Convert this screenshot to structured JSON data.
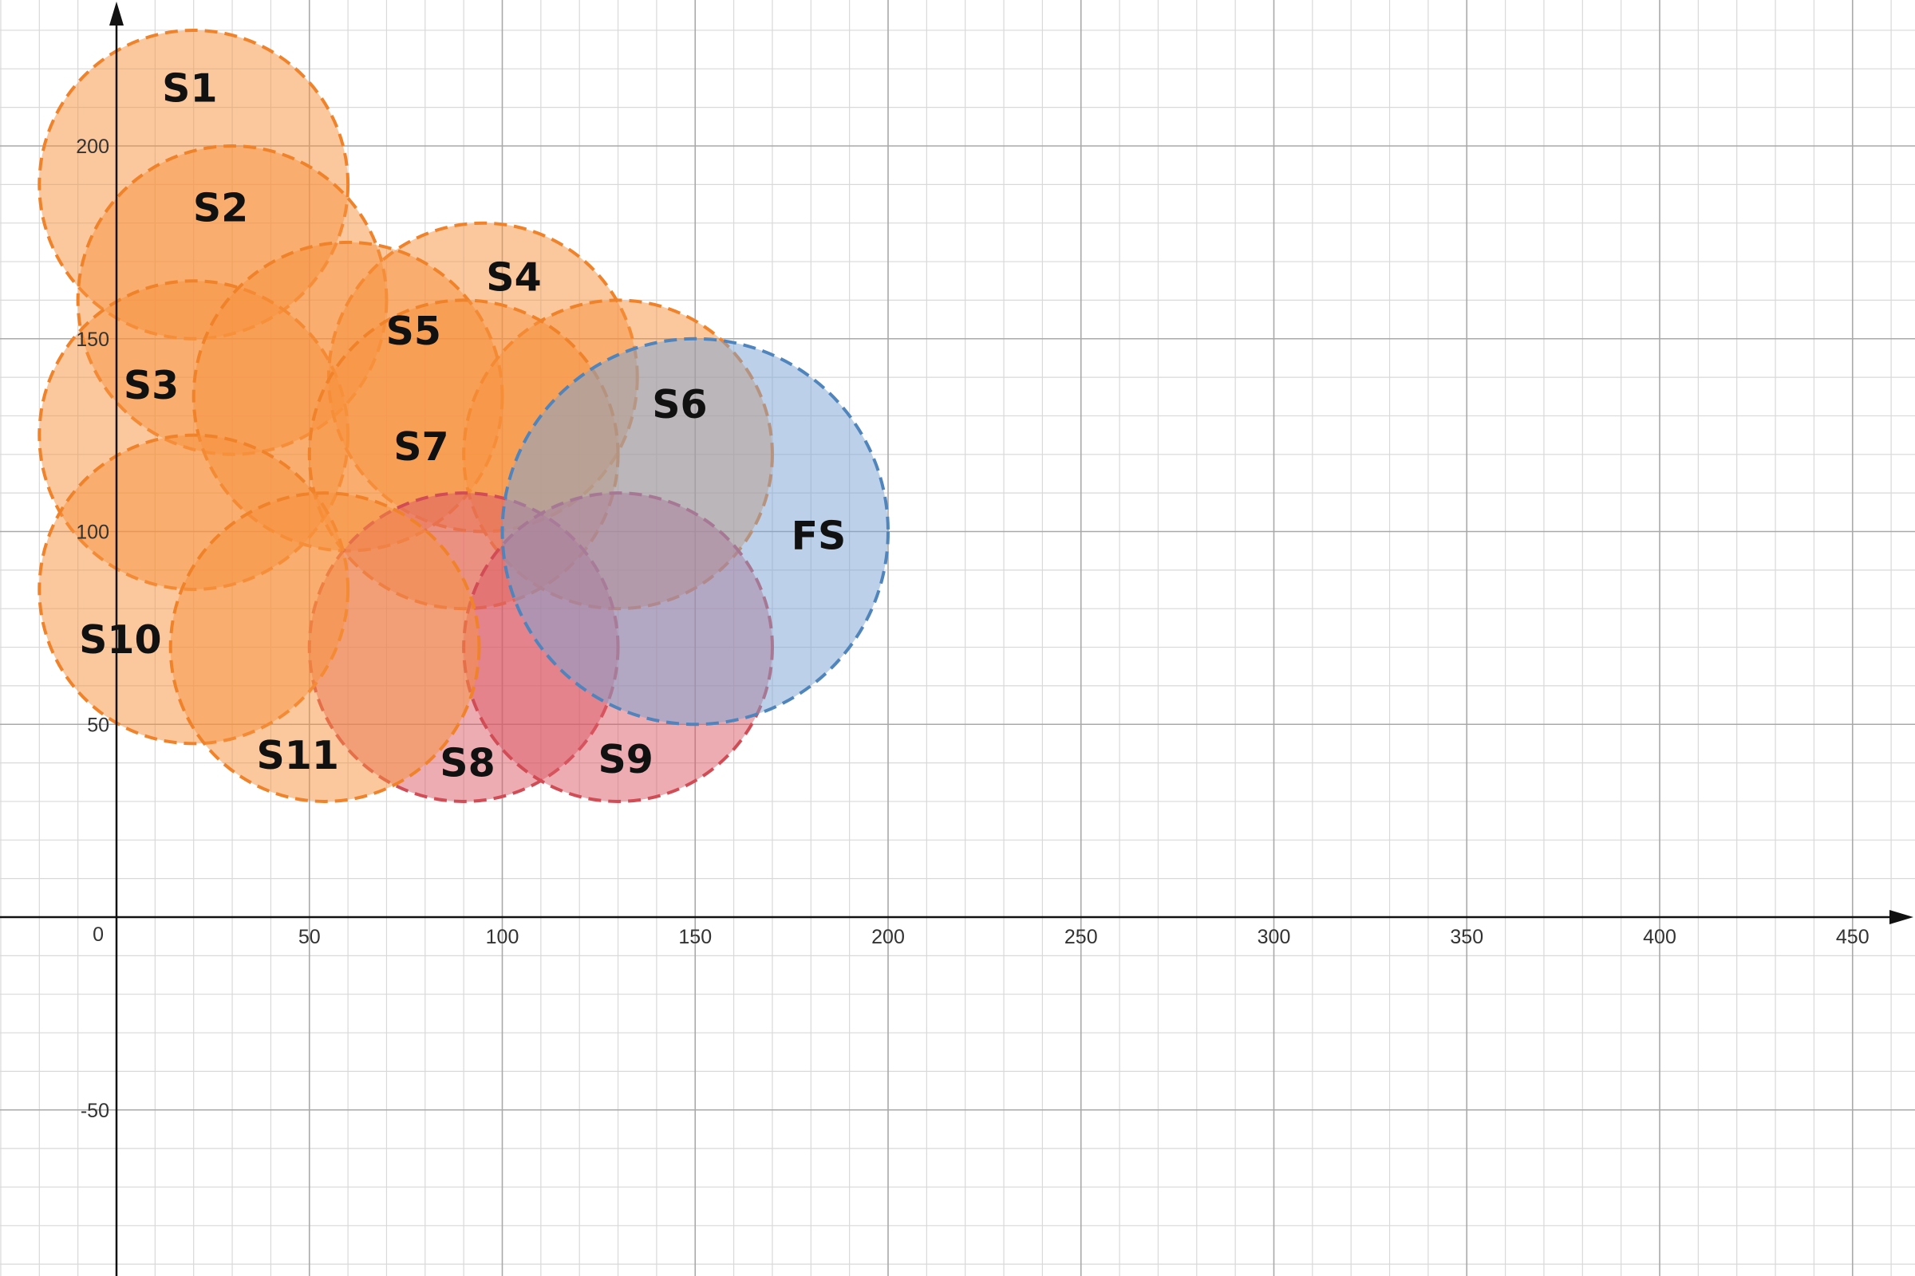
{
  "chart_data": {
    "type": "scatter",
    "title": "",
    "xlabel": "",
    "ylabel": "",
    "xlim": [
      -30,
      465
    ],
    "ylim": [
      -93,
      237
    ],
    "x_ticks": [
      50,
      100,
      150,
      200,
      250,
      300,
      350,
      400,
      450
    ],
    "y_ticks": [
      200,
      150,
      100,
      50,
      -50
    ],
    "origin_label": "0",
    "grid": true,
    "minor_grid_step": 10,
    "colors": {
      "orange_fill": "#f7913d",
      "orange_stroke": "#f0822a",
      "red_fill": "#dc5a66",
      "red_stroke": "#d24c55",
      "blue_fill": "#7aa3d3",
      "blue_stroke": "#4f84bd",
      "major_grid": "#a9a9a9",
      "minor_grid": "#d9d9d9",
      "axis": "#111111"
    },
    "series": [
      {
        "name": "S1",
        "cx": 20,
        "cy": 190,
        "r": 40,
        "color": "orange",
        "label_x": 19,
        "label_y": 215
      },
      {
        "name": "S2",
        "cx": 30,
        "cy": 160,
        "r": 40,
        "color": "orange",
        "label_x": 27,
        "label_y": 184
      },
      {
        "name": "S3",
        "cx": 20,
        "cy": 125,
        "r": 40,
        "color": "orange",
        "label_x": 9,
        "label_y": 138
      },
      {
        "name": "S4",
        "cx": 95,
        "cy": 140,
        "r": 40,
        "color": "orange",
        "label_x": 103,
        "label_y": 166
      },
      {
        "name": "S5",
        "cx": 60,
        "cy": 135,
        "r": 40,
        "color": "orange",
        "label_x": 77,
        "label_y": 152
      },
      {
        "name": "S6",
        "cx": 130,
        "cy": 120,
        "r": 40,
        "color": "orange",
        "label_x": 146,
        "label_y": 133
      },
      {
        "name": "S7",
        "cx": 90,
        "cy": 120,
        "r": 40,
        "color": "orange",
        "label_x": 79,
        "label_y": 122
      },
      {
        "name": "S8",
        "cx": 90,
        "cy": 70,
        "r": 40,
        "color": "red",
        "label_x": 91,
        "label_y": 40
      },
      {
        "name": "S9",
        "cx": 130,
        "cy": 70,
        "r": 40,
        "color": "red",
        "label_x": 132,
        "label_y": 41
      },
      {
        "name": "S10",
        "cx": 20,
        "cy": 85,
        "r": 40,
        "color": "orange",
        "label_x": 1,
        "label_y": 72
      },
      {
        "name": "S11",
        "cx": 54,
        "cy": 70,
        "r": 40,
        "color": "orange",
        "label_x": 47,
        "label_y": 42
      },
      {
        "name": "FS",
        "cx": 150,
        "cy": 100,
        "r": 50,
        "color": "blue",
        "label_x": 182,
        "label_y": 99
      }
    ]
  }
}
